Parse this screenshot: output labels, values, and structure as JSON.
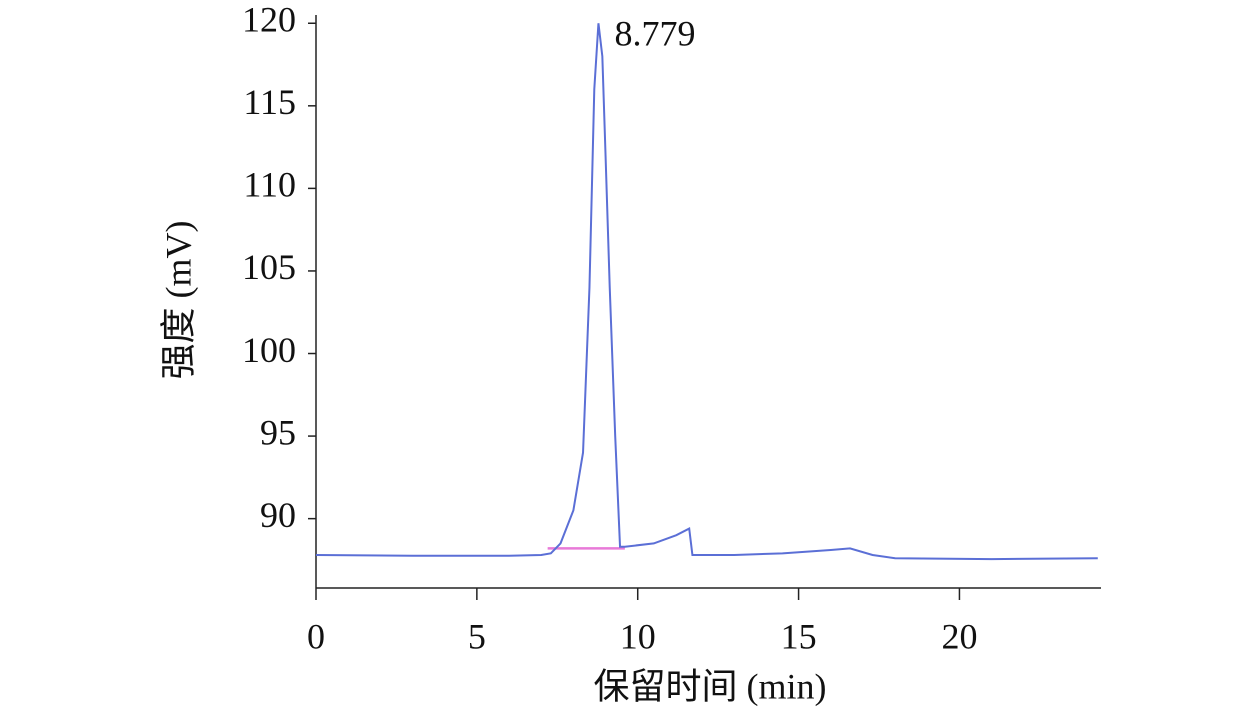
{
  "chart_data": {
    "type": "line",
    "x_label": "保留时间 (min)",
    "y_label": "强度 (mV)",
    "x": [
      0,
      3,
      6,
      7,
      7.3,
      7.6,
      8.0,
      8.3,
      8.5,
      8.65,
      8.779,
      8.9,
      9.0,
      9.13,
      9.3,
      9.45,
      9.6,
      10.5,
      11.2,
      11.6,
      11.7,
      13,
      14.5,
      16,
      16.6,
      17.3,
      18,
      21,
      24.3
    ],
    "series": [
      {
        "color": "#5b6fd6",
        "values": [
          87.8,
          87.75,
          87.75,
          87.8,
          87.9,
          88.5,
          90.5,
          94,
          104,
          116,
          120,
          118,
          112,
          104,
          95,
          88.3,
          88.3,
          88.5,
          89,
          89.4,
          87.8,
          87.8,
          87.9,
          88.1,
          88.2,
          87.8,
          87.6,
          87.55,
          87.6
        ]
      }
    ],
    "baseline": {
      "x": [
        7.2,
        9.6
      ],
      "y": 88.2,
      "color": "#e87ad8"
    },
    "annotations": [
      {
        "text": "8.779",
        "x": 8.779,
        "y": 120
      }
    ],
    "xlim": [
      0,
      24.4
    ],
    "ylim": [
      85.8,
      120.5
    ],
    "xticks": [
      0,
      5,
      10,
      15,
      20
    ],
    "yticks": [
      90,
      95,
      100,
      105,
      110,
      115,
      120
    ]
  }
}
